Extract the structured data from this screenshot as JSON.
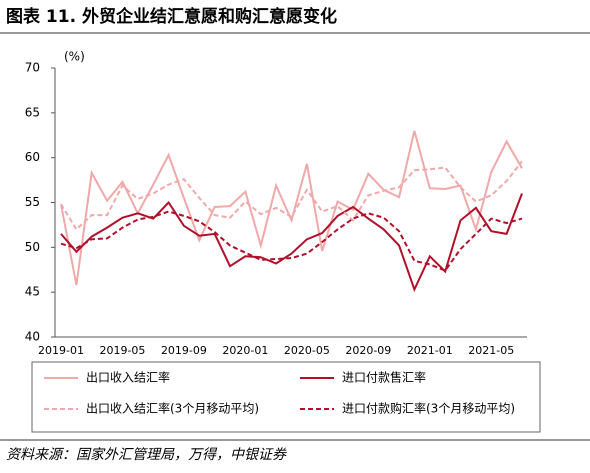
{
  "header": {
    "title": "图表 11. 外贸企业结汇意愿和购汇意愿变化"
  },
  "chart_data": {
    "type": "line",
    "y_label": "(%)",
    "categories": [
      "2019-01",
      null,
      null,
      null,
      "2019-05",
      null,
      null,
      null,
      "2019-09",
      null,
      null,
      null,
      "2020-01",
      null,
      null,
      null,
      "2020-05",
      null,
      null,
      null,
      "2020-09",
      null,
      null,
      null,
      "2021-01",
      null,
      null,
      null,
      "2021-05",
      null,
      null
    ],
    "series": [
      {
        "name": "出口收入结汇率",
        "color": "#f0a8a8",
        "dash": false,
        "values": [
          54.8,
          45.8,
          58.3,
          55.2,
          57.3,
          53.8,
          57.0,
          60.3,
          55.5,
          50.8,
          54.5,
          54.6,
          56.2,
          50.2,
          56.9,
          53.0,
          59.3,
          49.6,
          55.1,
          54.2,
          58.2,
          56.4,
          55.6,
          63.0,
          56.6,
          56.5,
          56.9,
          52.0,
          58.4,
          61.8,
          58.8
        ]
      },
      {
        "name": "进口付款售汇率",
        "color": "#b0102a",
        "dash": false,
        "values": [
          51.5,
          49.5,
          51.2,
          52.2,
          53.3,
          53.8,
          53.2,
          55.0,
          52.4,
          51.3,
          51.5,
          47.9,
          49.0,
          48.9,
          48.2,
          49.3,
          50.9,
          51.6,
          53.5,
          54.5,
          53.2,
          52.0,
          50.2,
          45.3,
          49.0,
          47.3,
          53.0,
          54.4,
          51.8,
          51.5,
          56.0
        ]
      },
      {
        "name": "出口收入结汇率(3个月移动平均)",
        "color": "#f0a8a8",
        "dash": true,
        "values": [
          54.8,
          52.0,
          53.6,
          53.6,
          56.9,
          55.4,
          56.0,
          57.0,
          57.6,
          55.5,
          53.6,
          53.3,
          55.1,
          53.7,
          54.4,
          53.4,
          56.4,
          54.0,
          54.6,
          53.0,
          55.8,
          56.3,
          56.7,
          58.6,
          58.7,
          58.9,
          56.7,
          55.1,
          55.8,
          57.4,
          59.6
        ]
      },
      {
        "name": "进口付款购汇率(3个月移动平均)",
        "color": "#b0102a",
        "dash": true,
        "values": [
          50.4,
          49.9,
          50.9,
          51.0,
          52.2,
          53.1,
          53.4,
          54.0,
          53.5,
          52.9,
          51.7,
          50.2,
          49.4,
          48.6,
          48.7,
          48.8,
          49.3,
          50.6,
          52.0,
          53.2,
          53.8,
          53.3,
          51.8,
          48.5,
          48.1,
          47.4,
          49.8,
          51.5,
          53.2,
          52.7,
          53.2
        ]
      }
    ],
    "ylim": [
      40,
      70
    ],
    "yticks": [
      40,
      45,
      50,
      55,
      60,
      65,
      70
    ],
    "grid": false
  },
  "footer": {
    "source": "资料来源：国家外汇管理局，万得，中银证券"
  }
}
